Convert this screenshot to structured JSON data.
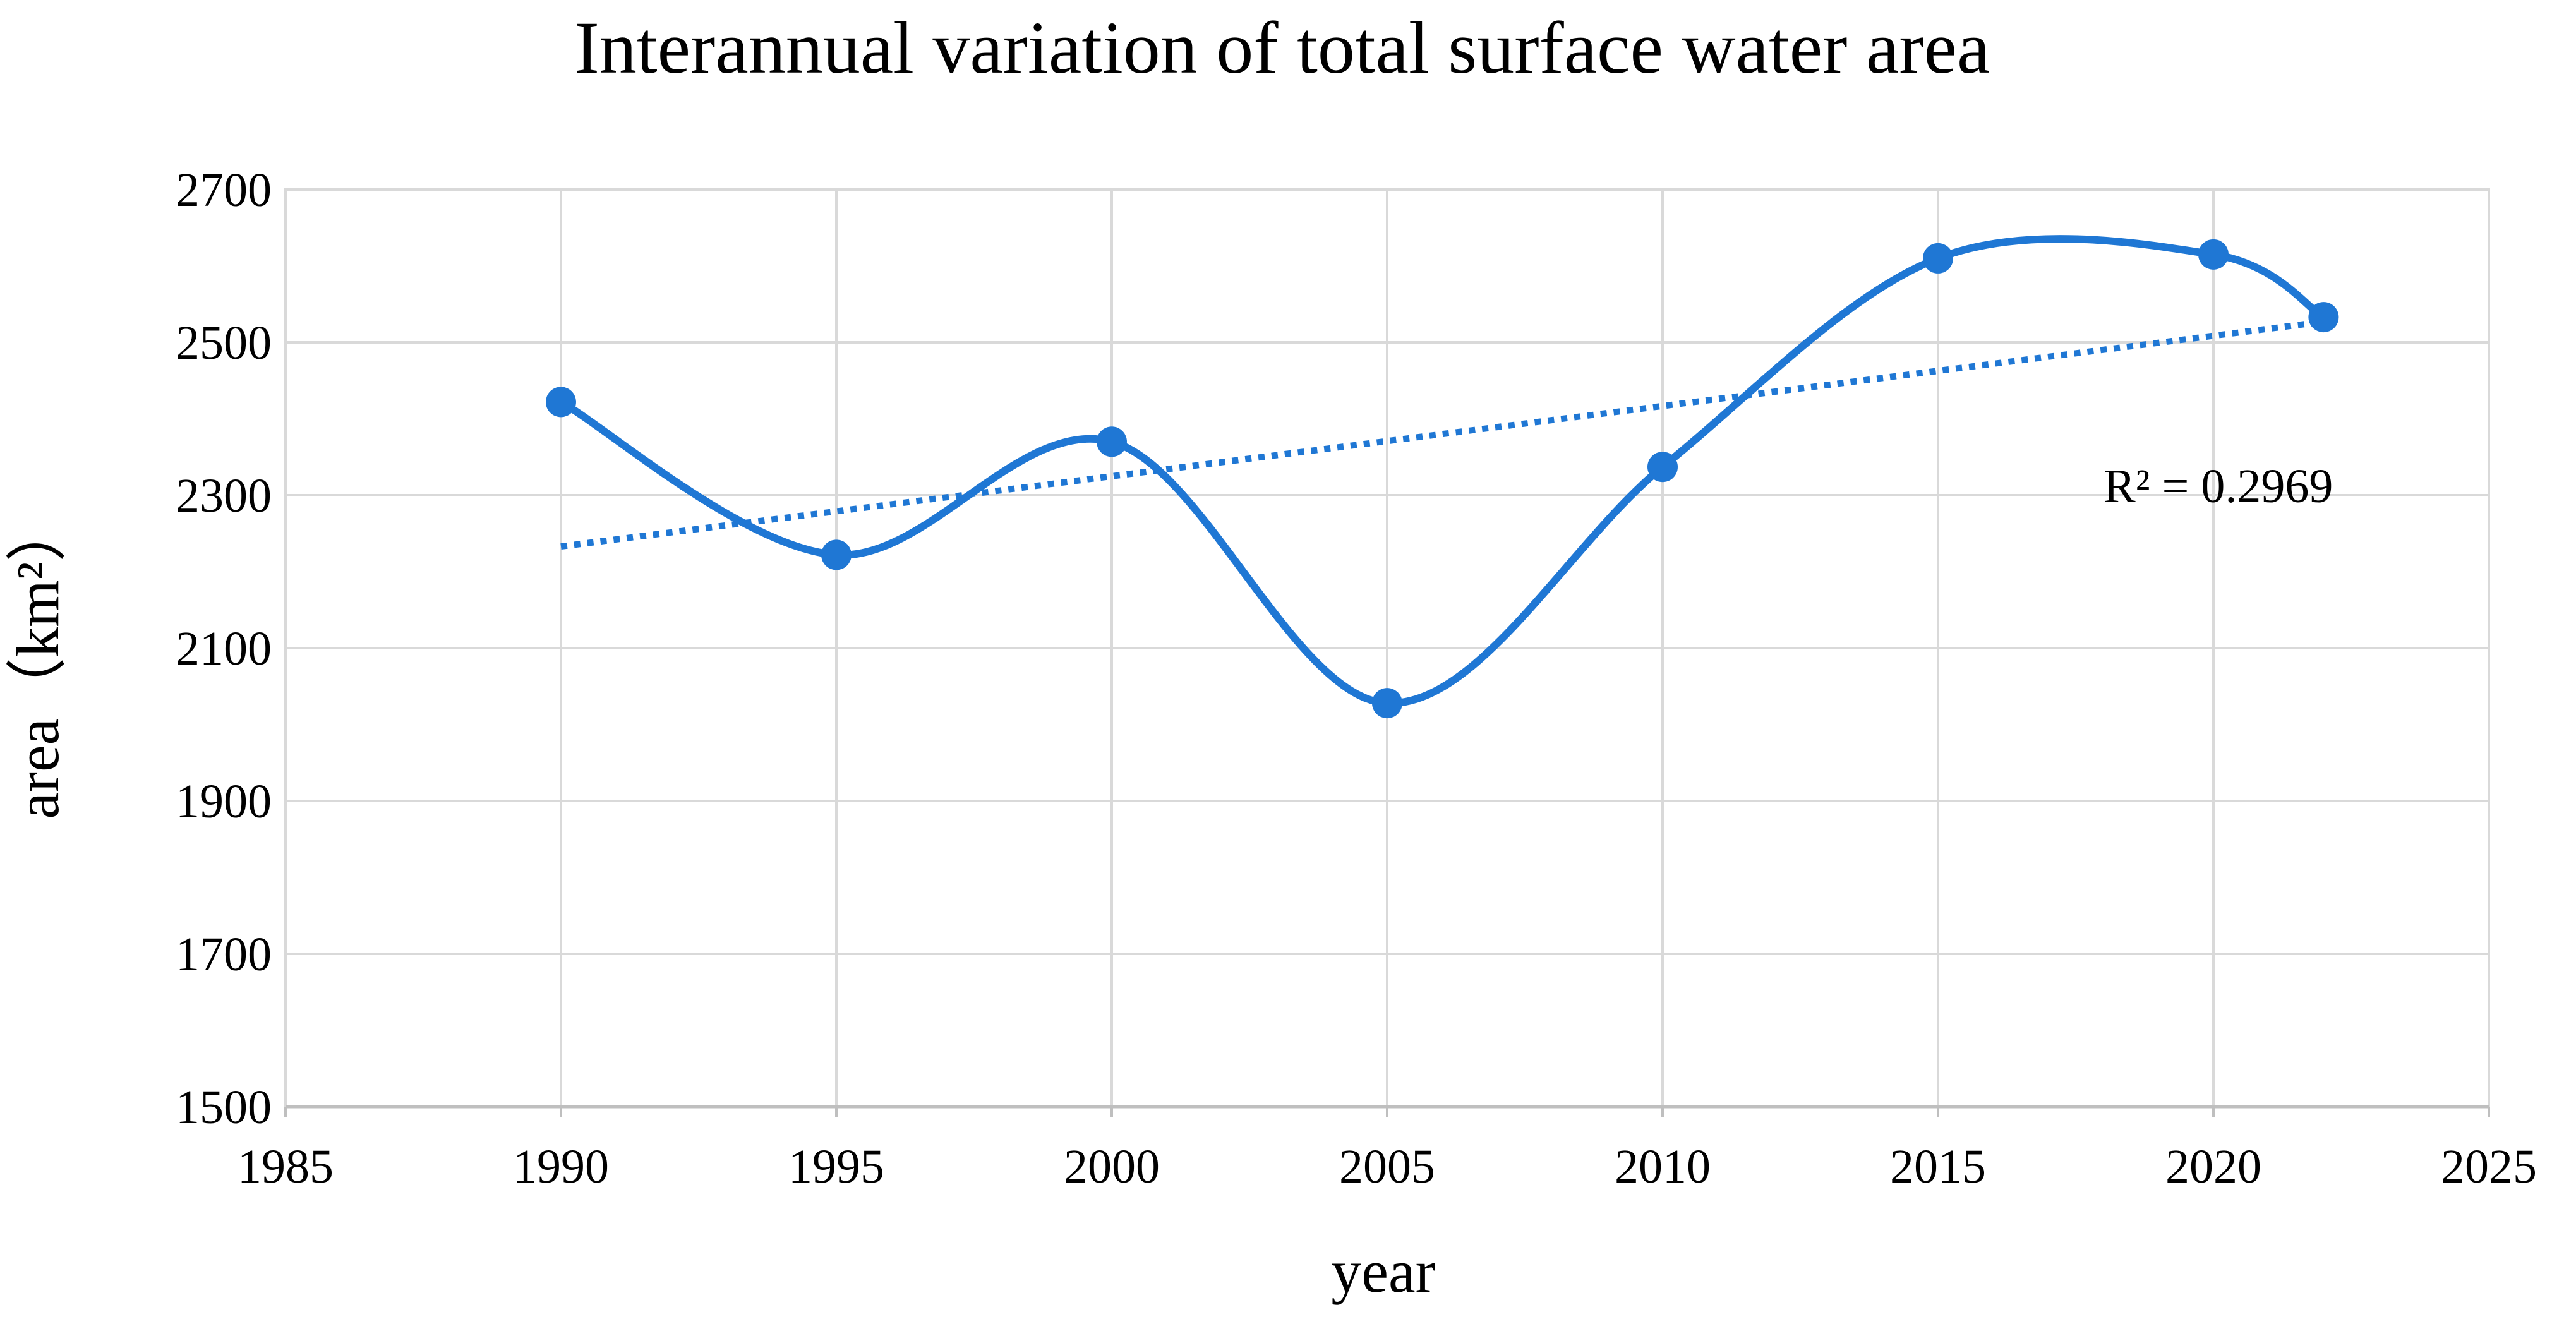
{
  "chart_data": {
    "type": "scatter",
    "title": "Interannual variation of total surface water area",
    "xlabel": "year",
    "ylabel": "area（km²）",
    "xlim": [
      1985,
      2025
    ],
    "ylim": [
      1500,
      2700
    ],
    "xticks": [
      1985,
      1990,
      1995,
      2000,
      2005,
      2010,
      2015,
      2020,
      2025
    ],
    "yticks": [
      1500,
      1700,
      1900,
      2100,
      2300,
      2500,
      2700
    ],
    "grid": true,
    "legend": "none",
    "series": [
      {
        "name": "total surface water area",
        "style": "smoothed-line-with-markers",
        "color": "#1f77d4",
        "x": [
          1990,
          1995,
          2000,
          2005,
          2010,
          2015,
          2020,
          2022
        ],
        "y": [
          2422,
          2222,
          2370,
          2028,
          2337,
          2610,
          2615,
          2533
        ]
      }
    ],
    "trendline": {
      "type": "linear",
      "style": "dotted",
      "color": "#1f77d4",
      "x": [
        1990,
        2022
      ],
      "y": [
        2233,
        2527
      ]
    },
    "annotation": {
      "text": "R² = 0.2969"
    }
  }
}
